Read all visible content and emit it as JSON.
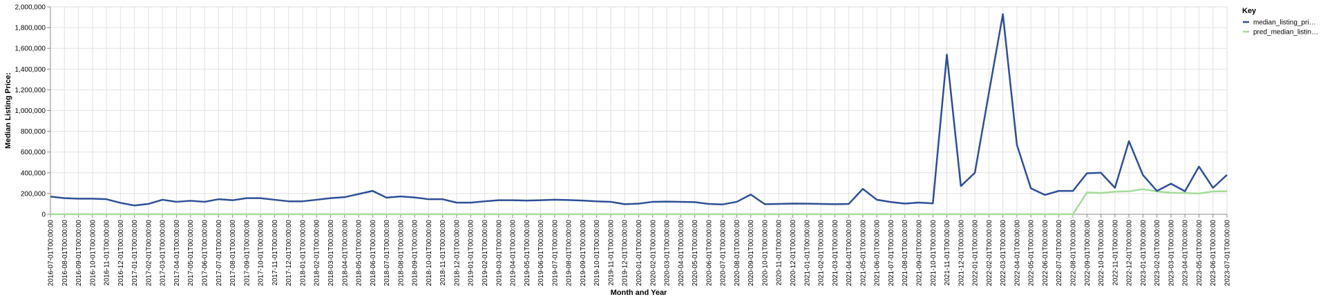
{
  "chart_data": {
    "type": "line",
    "xlabel": "Month and Year",
    "ylabel": "Median Listing Price:",
    "ylim": [
      0,
      2000000
    ],
    "yticks": [
      0,
      200000,
      400000,
      600000,
      800000,
      1000000,
      1200000,
      1400000,
      1600000,
      1800000,
      2000000
    ],
    "ytick_labels": [
      "0",
      "200,000",
      "400,000",
      "600,000",
      "800,000",
      "1,000,000",
      "1,200,000",
      "1,400,000",
      "1,600,000",
      "1,800,000",
      "2,000,000"
    ],
    "grid": true,
    "legend": {
      "title": "Key",
      "position": "right",
      "entries": [
        "median_listing_pri…",
        "pred_median_listin…"
      ]
    },
    "categories": [
      "2016-07-01T00:00:00",
      "2016-08-01T00:00:00",
      "2016-09-01T00:00:00",
      "2016-10-01T00:00:00",
      "2016-11-01T00:00:00",
      "2016-12-01T00:00:00",
      "2017-01-01T00:00:00",
      "2017-02-01T00:00:00",
      "2017-03-01T00:00:00",
      "2017-04-01T00:00:00",
      "2017-05-01T00:00:00",
      "2017-06-01T00:00:00",
      "2017-07-01T00:00:00",
      "2017-08-01T00:00:00",
      "2017-09-01T00:00:00",
      "2017-10-01T00:00:00",
      "2017-11-01T00:00:00",
      "2017-12-01T00:00:00",
      "2018-01-01T00:00:00",
      "2018-02-01T00:00:00",
      "2018-03-01T00:00:00",
      "2018-04-01T00:00:00",
      "2018-05-01T00:00:00",
      "2018-06-01T00:00:00",
      "2018-07-01T00:00:00",
      "2018-08-01T00:00:00",
      "2018-09-01T00:00:00",
      "2018-10-01T00:00:00",
      "2018-11-01T00:00:00",
      "2018-12-01T00:00:00",
      "2019-01-01T00:00:00",
      "2019-02-01T00:00:00",
      "2019-03-01T00:00:00",
      "2019-04-01T00:00:00",
      "2019-05-01T00:00:00",
      "2019-06-01T00:00:00",
      "2019-07-01T00:00:00",
      "2019-08-01T00:00:00",
      "2019-09-01T00:00:00",
      "2019-10-01T00:00:00",
      "2019-11-01T00:00:00",
      "2019-12-01T00:00:00",
      "2020-01-01T00:00:00",
      "2020-02-01T00:00:00",
      "2020-03-01T00:00:00",
      "2020-04-01T00:00:00",
      "2020-05-01T00:00:00",
      "2020-06-01T00:00:00",
      "2020-07-01T00:00:00",
      "2020-08-01T00:00:00",
      "2020-09-01T00:00:00",
      "2020-10-01T00:00:00",
      "2020-11-01T00:00:00",
      "2020-12-01T00:00:00",
      "2021-01-01T00:00:00",
      "2021-02-01T00:00:00",
      "2021-03-01T00:00:00",
      "2021-04-01T00:00:00",
      "2021-05-01T00:00:00",
      "2021-06-01T00:00:00",
      "2021-07-01T00:00:00",
      "2021-08-01T00:00:00",
      "2021-09-01T00:00:00",
      "2021-10-01T00:00:00",
      "2021-11-01T00:00:00",
      "2021-12-01T00:00:00",
      "2022-01-01T00:00:00",
      "2022-02-01T00:00:00",
      "2022-03-01T00:00:00",
      "2022-04-01T00:00:00",
      "2022-05-01T00:00:00",
      "2022-06-01T00:00:00",
      "2022-07-01T00:00:00",
      "2022-08-01T00:00:00",
      "2022-09-01T00:00:00",
      "2022-10-01T00:00:00",
      "2022-11-01T00:00:00",
      "2022-12-01T00:00:00",
      "2023-01-01T00:00:00",
      "2023-02-01T00:00:00",
      "2023-03-01T00:00:00",
      "2023-04-01T00:00:00",
      "2023-05-01T00:00:00",
      "2023-06-01T00:00:00",
      "2023-07-01T00:00:00"
    ],
    "series": [
      {
        "name": "median_listing_pri…",
        "color": "#2b4e96",
        "values": [
          170000,
          155000,
          150000,
          150000,
          145000,
          110000,
          85000,
          100000,
          140000,
          120000,
          130000,
          120000,
          145000,
          135000,
          155000,
          155000,
          140000,
          125000,
          125000,
          140000,
          155000,
          165000,
          195000,
          225000,
          160000,
          172000,
          162000,
          145000,
          145000,
          112000,
          112000,
          125000,
          135000,
          135000,
          132000,
          135000,
          140000,
          137000,
          132000,
          125000,
          120000,
          97000,
          102000,
          120000,
          122000,
          120000,
          117000,
          100000,
          95000,
          120000,
          190000,
          97000,
          100000,
          103000,
          102000,
          100000,
          97000,
          100000,
          245000,
          140000,
          118000,
          103000,
          113000,
          105000,
          1540000,
          272000,
          400000,
          1170000,
          1930000,
          670000,
          250000,
          187000,
          225000,
          225000,
          395000,
          400000,
          255000,
          705000,
          378000,
          225000,
          295000,
          222000,
          460000,
          255000,
          380000
        ]
      },
      {
        "name": "pred_median_listin…",
        "color": "#a5dc98",
        "values": [
          0,
          0,
          0,
          0,
          0,
          0,
          0,
          0,
          0,
          0,
          0,
          0,
          0,
          0,
          0,
          0,
          0,
          0,
          0,
          0,
          0,
          0,
          0,
          0,
          0,
          0,
          0,
          0,
          0,
          0,
          0,
          0,
          0,
          0,
          0,
          0,
          0,
          0,
          0,
          0,
          0,
          0,
          0,
          0,
          0,
          0,
          0,
          0,
          0,
          0,
          0,
          0,
          0,
          0,
          0,
          0,
          0,
          0,
          0,
          0,
          0,
          0,
          0,
          0,
          0,
          0,
          0,
          0,
          0,
          0,
          0,
          0,
          0,
          0,
          210000,
          205000,
          218000,
          222000,
          242000,
          220000,
          208000,
          205000,
          200000,
          220000,
          222000
        ]
      }
    ]
  }
}
